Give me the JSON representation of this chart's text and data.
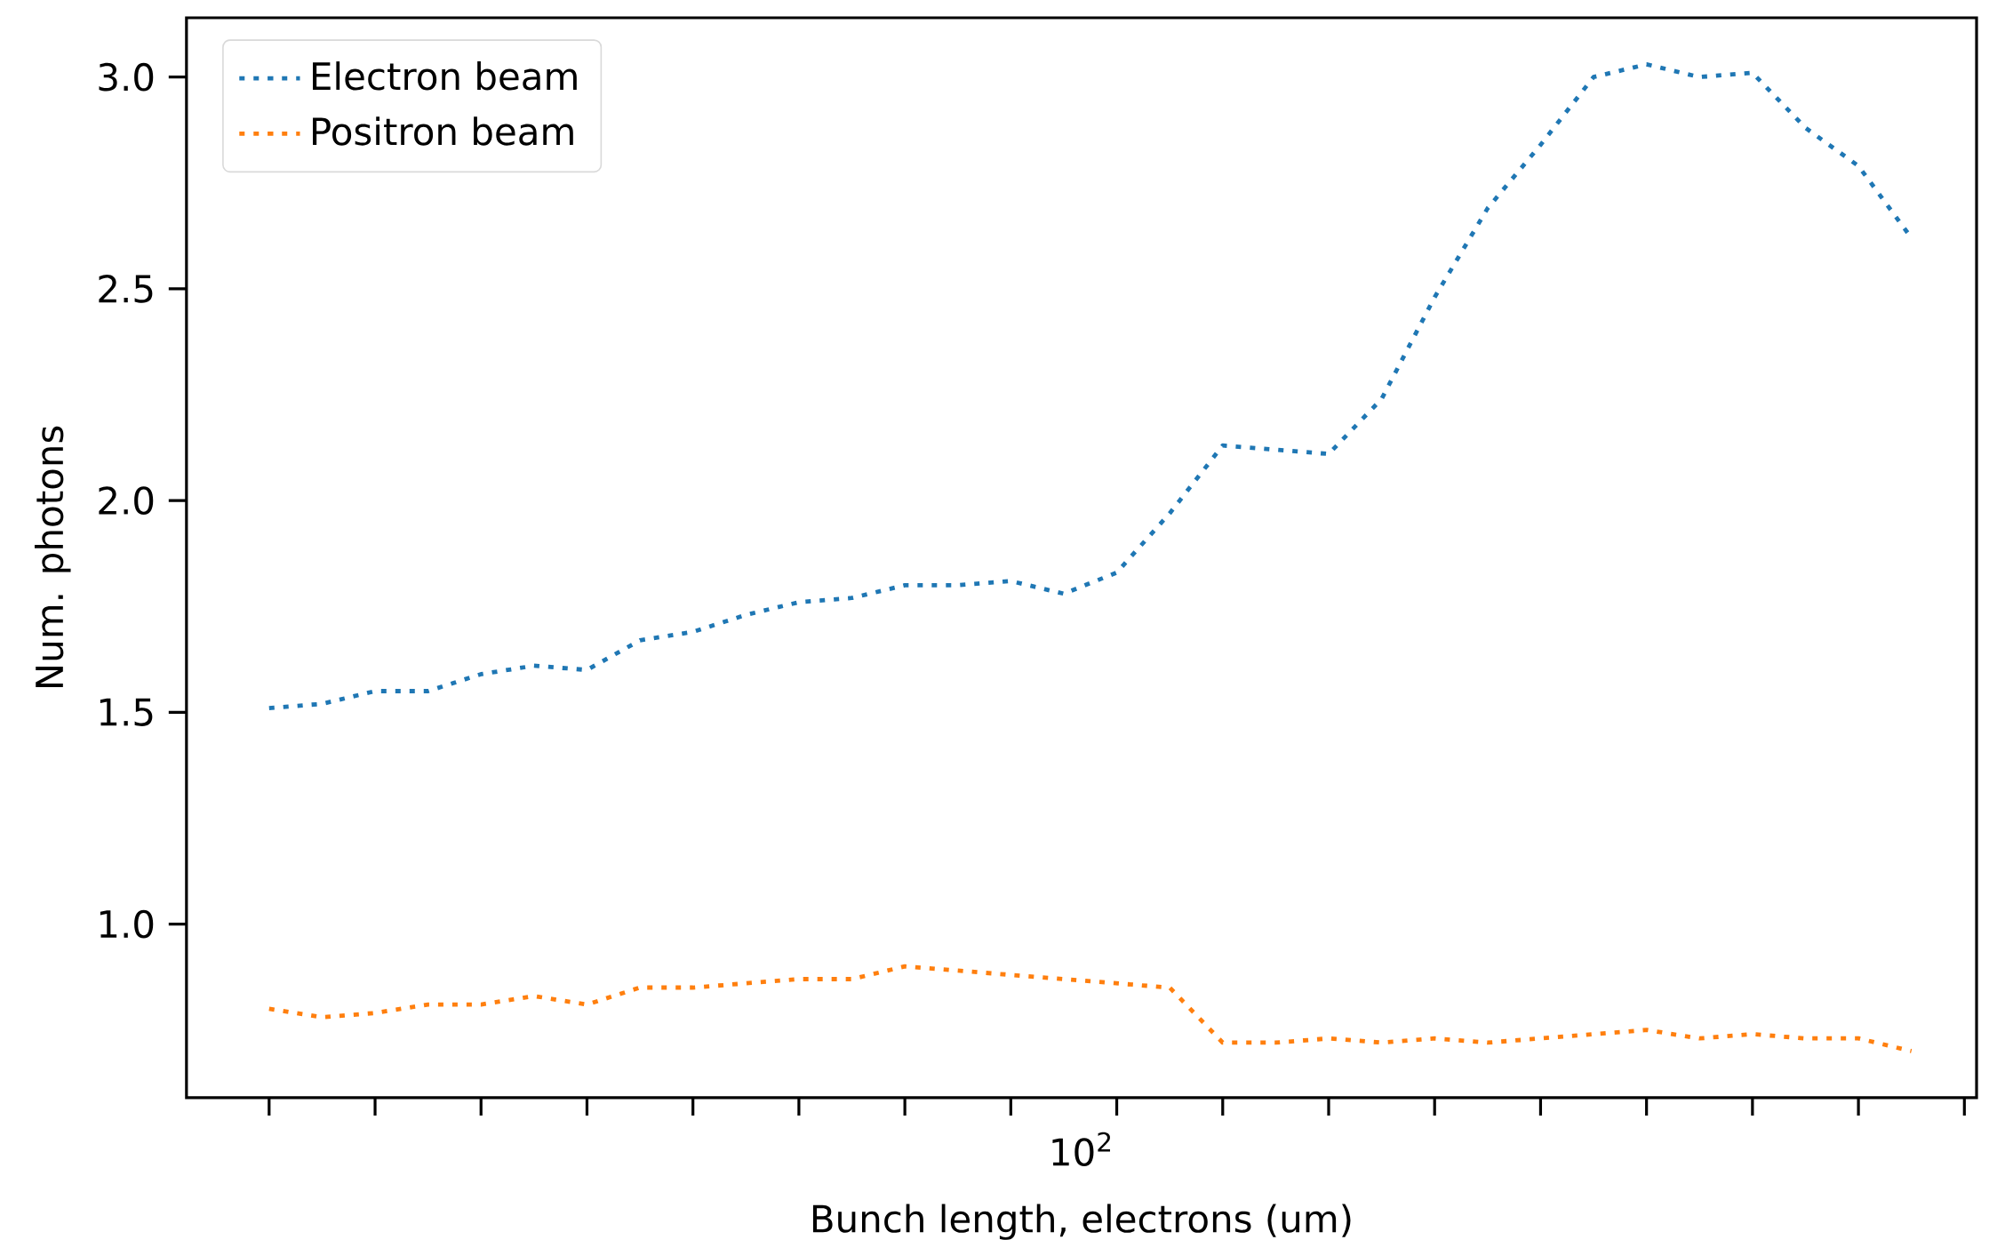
{
  "chart_data": {
    "type": "line",
    "xlabel": "Bunch length, electrons (um)",
    "ylabel": "Num. photons",
    "annotations": [
      "10$^{2}$"
    ],
    "ylim": [
      0.59,
      3.14
    ],
    "yticks": [
      {
        "value": 1.0,
        "label": "1.0"
      },
      {
        "value": 1.5,
        "label": "1.5"
      },
      {
        "value": 2.0,
        "label": "2.0"
      },
      {
        "value": 2.5,
        "label": "2.5"
      },
      {
        "value": 3.0,
        "label": "3.0"
      }
    ],
    "categories": [
      null,
      null,
      null,
      null,
      null,
      null,
      null,
      null,
      null,
      null,
      null,
      null,
      null,
      null,
      null,
      null,
      null,
      null,
      null,
      null,
      null,
      null,
      null,
      null,
      null,
      null,
      null,
      null,
      null,
      null,
      null,
      null
    ],
    "line_style": "dotted",
    "marker": "none",
    "legend": "top left",
    "series": [
      {
        "name": "Electron beam",
        "color": "#1f77b4",
        "values": [
          1.51,
          1.52,
          1.55,
          1.55,
          1.59,
          1.61,
          1.6,
          1.67,
          1.69,
          1.73,
          1.76,
          1.77,
          1.8,
          1.8,
          1.81,
          1.78,
          1.83,
          1.97,
          2.13,
          2.12,
          2.11,
          2.24,
          2.48,
          2.69,
          2.84,
          3.0,
          3.03,
          3.0,
          3.01,
          2.88,
          2.79,
          2.62
        ]
      },
      {
        "name": "Positron beam",
        "color": "#ff7f0e",
        "values": [
          0.8,
          0.78,
          0.79,
          0.81,
          0.81,
          0.83,
          0.81,
          0.85,
          0.85,
          0.86,
          0.87,
          0.87,
          0.9,
          0.89,
          0.88,
          0.87,
          0.86,
          0.85,
          0.72,
          0.72,
          0.73,
          0.72,
          0.73,
          0.72,
          0.73,
          0.74,
          0.75,
          0.73,
          0.74,
          0.73,
          0.73,
          0.7
        ]
      }
    ]
  }
}
